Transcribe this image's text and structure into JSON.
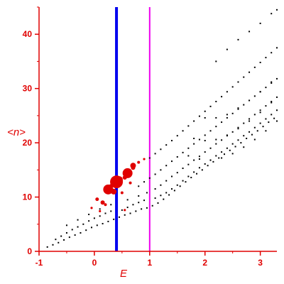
{
  "chart_data": {
    "type": "scatter",
    "xlabel": "E",
    "ylabel": "<n>",
    "xlim": [
      -1,
      3.3
    ],
    "ylim": [
      0,
      45
    ],
    "xticks": [
      -1,
      0,
      1,
      2,
      3
    ],
    "yticks": [
      0,
      10,
      20,
      30,
      40
    ],
    "grid": false,
    "colors": {
      "axis": "#e00000",
      "black_points": "#000000",
      "red_points": "#e00000",
      "line_blue": "#0000ee",
      "line_magenta": "#ee00ee"
    },
    "vertical_lines": [
      {
        "x": 0.4,
        "color": "#0000ee"
      },
      {
        "x": 1.0,
        "color": "#ee00ee"
      }
    ],
    "series": [
      {
        "color": "#000000",
        "points": [
          [
            -0.85,
            0.8
          ],
          [
            -0.75,
            1.2
          ],
          [
            -0.65,
            1.6
          ],
          [
            -0.55,
            2.1
          ],
          [
            -0.45,
            2.6
          ],
          [
            -0.35,
            3.0
          ],
          [
            -0.25,
            3.4
          ],
          [
            -0.15,
            3.9
          ],
          [
            -0.05,
            4.4
          ],
          [
            0.05,
            4.8
          ],
          [
            0.15,
            5.1
          ],
          [
            0.25,
            5.5
          ],
          [
            0.35,
            5.9
          ],
          [
            0.45,
            6.3
          ],
          [
            0.55,
            6.7
          ],
          [
            0.65,
            7.0
          ],
          [
            0.75,
            7.4
          ],
          [
            0.85,
            7.8
          ],
          [
            0.95,
            8.0
          ],
          [
            1.05,
            8.4
          ],
          [
            1.15,
            8.9
          ],
          [
            1.25,
            9.6
          ],
          [
            1.35,
            10.4
          ],
          [
            1.45,
            11.2
          ],
          [
            1.55,
            12.0
          ],
          [
            1.65,
            12.8
          ],
          [
            1.75,
            13.6
          ],
          [
            1.85,
            14.3
          ],
          [
            1.95,
            15.0
          ],
          [
            2.05,
            15.8
          ],
          [
            2.15,
            16.5
          ],
          [
            2.25,
            17.2
          ],
          [
            2.35,
            17.9
          ],
          [
            2.45,
            18.6
          ],
          [
            2.55,
            19.3
          ],
          [
            2.65,
            20.0
          ],
          [
            2.75,
            20.8
          ],
          [
            2.85,
            21.5
          ],
          [
            2.95,
            22.2
          ],
          [
            3.05,
            23.0
          ],
          [
            3.15,
            23.8
          ],
          [
            3.25,
            24.5
          ],
          [
            -0.7,
            2.2
          ],
          [
            -0.6,
            2.8
          ],
          [
            -0.5,
            3.4
          ],
          [
            -0.4,
            4.0
          ],
          [
            -0.3,
            4.5
          ],
          [
            -0.2,
            5.0
          ],
          [
            -0.1,
            5.6
          ],
          [
            0.0,
            6.1
          ],
          [
            0.1,
            6.5
          ],
          [
            0.2,
            7.0
          ],
          [
            0.3,
            7.4
          ],
          [
            0.5,
            7.6
          ],
          [
            0.6,
            8.1
          ],
          [
            0.7,
            8.6
          ],
          [
            0.8,
            9.0
          ],
          [
            0.9,
            9.4
          ],
          [
            1.1,
            9.8
          ],
          [
            1.2,
            10.3
          ],
          [
            1.3,
            10.8
          ],
          [
            1.4,
            11.5
          ],
          [
            1.5,
            12.2
          ],
          [
            1.6,
            13.0
          ],
          [
            1.7,
            13.8
          ],
          [
            1.8,
            14.6
          ],
          [
            1.9,
            15.4
          ],
          [
            2.0,
            16.1
          ],
          [
            2.1,
            16.8
          ],
          [
            2.2,
            17.6
          ],
          [
            2.3,
            18.3
          ],
          [
            2.4,
            19.0
          ],
          [
            2.5,
            19.8
          ],
          [
            2.6,
            20.5
          ],
          [
            2.7,
            21.3
          ],
          [
            2.8,
            22.0
          ],
          [
            2.9,
            22.8
          ],
          [
            3.0,
            23.6
          ],
          [
            3.1,
            24.4
          ],
          [
            3.2,
            25.2
          ],
          [
            3.3,
            26.0
          ],
          [
            -0.5,
            4.8
          ],
          [
            -0.3,
            5.8
          ],
          [
            -0.1,
            6.8
          ],
          [
            0.1,
            7.8
          ],
          [
            0.3,
            8.6
          ],
          [
            0.6,
            9.5
          ],
          [
            0.8,
            10.2
          ],
          [
            0.95,
            10.8
          ],
          [
            1.1,
            11.5
          ],
          [
            1.2,
            12.2
          ],
          [
            1.3,
            13.0
          ],
          [
            1.4,
            13.8
          ],
          [
            1.5,
            14.5
          ],
          [
            1.6,
            15.3
          ],
          [
            1.7,
            16.0
          ],
          [
            1.8,
            16.8
          ],
          [
            1.9,
            17.5
          ],
          [
            2.0,
            18.3
          ],
          [
            2.1,
            19.0
          ],
          [
            2.2,
            19.8
          ],
          [
            2.3,
            20.5
          ],
          [
            2.4,
            21.3
          ],
          [
            2.5,
            22.0
          ],
          [
            2.6,
            22.8
          ],
          [
            2.7,
            23.6
          ],
          [
            2.8,
            24.4
          ],
          [
            2.9,
            25.2
          ],
          [
            3.0,
            26.0
          ],
          [
            3.1,
            26.8
          ],
          [
            3.2,
            27.6
          ],
          [
            3.3,
            28.4
          ],
          [
            0.8,
            12.0
          ],
          [
            0.9,
            12.8
          ],
          [
            1.0,
            13.5
          ],
          [
            1.1,
            14.2
          ],
          [
            1.2,
            15.0
          ],
          [
            1.3,
            15.8
          ],
          [
            1.4,
            16.6
          ],
          [
            1.5,
            17.4
          ],
          [
            1.6,
            18.2
          ],
          [
            1.7,
            19.0
          ],
          [
            1.8,
            19.8
          ],
          [
            1.9,
            20.6
          ],
          [
            2.0,
            21.4
          ],
          [
            2.1,
            22.2
          ],
          [
            2.2,
            23.0
          ],
          [
            2.3,
            23.8
          ],
          [
            2.4,
            24.6
          ],
          [
            2.5,
            25.4
          ],
          [
            2.6,
            26.2
          ],
          [
            2.7,
            27.0
          ],
          [
            2.8,
            27.8
          ],
          [
            2.9,
            28.6
          ],
          [
            3.0,
            29.4
          ],
          [
            3.1,
            30.2
          ],
          [
            3.2,
            31.0
          ],
          [
            3.3,
            31.8
          ],
          [
            1.0,
            17.2
          ],
          [
            1.1,
            18.0
          ],
          [
            1.2,
            18.8
          ],
          [
            1.3,
            19.6
          ],
          [
            1.4,
            20.4
          ],
          [
            1.5,
            21.3
          ],
          [
            1.6,
            22.2
          ],
          [
            1.7,
            23.1
          ],
          [
            1.8,
            24.0
          ],
          [
            1.9,
            24.9
          ],
          [
            2.0,
            25.8
          ],
          [
            2.1,
            26.7
          ],
          [
            2.2,
            27.6
          ],
          [
            2.3,
            28.5
          ],
          [
            2.4,
            29.4
          ],
          [
            2.5,
            30.3
          ],
          [
            2.6,
            31.2
          ],
          [
            2.7,
            32.1
          ],
          [
            2.8,
            33.0
          ],
          [
            2.9,
            33.9
          ],
          [
            3.0,
            34.8
          ],
          [
            3.1,
            35.7
          ],
          [
            3.2,
            36.6
          ],
          [
            3.3,
            37.5
          ],
          [
            2.2,
            35.0
          ],
          [
            2.4,
            37.2
          ],
          [
            2.6,
            39.0
          ],
          [
            2.8,
            40.5
          ],
          [
            3.0,
            42.0
          ],
          [
            3.2,
            43.8
          ],
          [
            3.3,
            44.5
          ],
          [
            1.7,
            17.6
          ],
          [
            1.9,
            17.0
          ],
          [
            2.1,
            16.8
          ],
          [
            2.3,
            17.2
          ],
          [
            2.5,
            18.0
          ],
          [
            2.7,
            19.2
          ],
          [
            2.9,
            20.6
          ],
          [
            3.1,
            22.2
          ],
          [
            3.3,
            24.0
          ],
          [
            1.8,
            20.8
          ],
          [
            2.0,
            20.4
          ],
          [
            2.2,
            20.6
          ],
          [
            2.4,
            21.4
          ],
          [
            2.6,
            22.6
          ],
          [
            2.8,
            24.0
          ],
          [
            3.0,
            25.6
          ],
          [
            3.2,
            27.4
          ],
          [
            2.0,
            24.6
          ],
          [
            2.2,
            24.6
          ],
          [
            2.4,
            25.2
          ],
          [
            2.6,
            26.4
          ],
          [
            2.8,
            27.8
          ],
          [
            3.0,
            29.4
          ],
          [
            3.2,
            31.2
          ]
        ]
      },
      {
        "color": "#e00000",
        "points": [
          [
            0.25,
            11.4,
            7
          ],
          [
            0.4,
            12.8,
            9
          ],
          [
            0.6,
            14.4,
            7
          ],
          [
            0.45,
            13.2,
            5
          ],
          [
            0.7,
            15.8,
            4
          ],
          [
            0.35,
            11.0,
            4
          ],
          [
            0.55,
            13.6,
            3
          ],
          [
            0.15,
            9.0,
            3
          ],
          [
            0.05,
            9.6,
            2.5
          ],
          [
            0.2,
            8.6,
            2
          ],
          [
            -0.05,
            8.0,
            1.6
          ],
          [
            0.1,
            7.4,
            1.6
          ],
          [
            0.5,
            10.8,
            2
          ],
          [
            0.8,
            16.4,
            2
          ],
          [
            0.9,
            17.0,
            1.6
          ],
          [
            0.65,
            12.6,
            2
          ],
          [
            0.55,
            7.6,
            1.6
          ],
          [
            0.3,
            12.0,
            3
          ],
          [
            0.7,
            15.4,
            3
          ]
        ]
      }
    ]
  }
}
